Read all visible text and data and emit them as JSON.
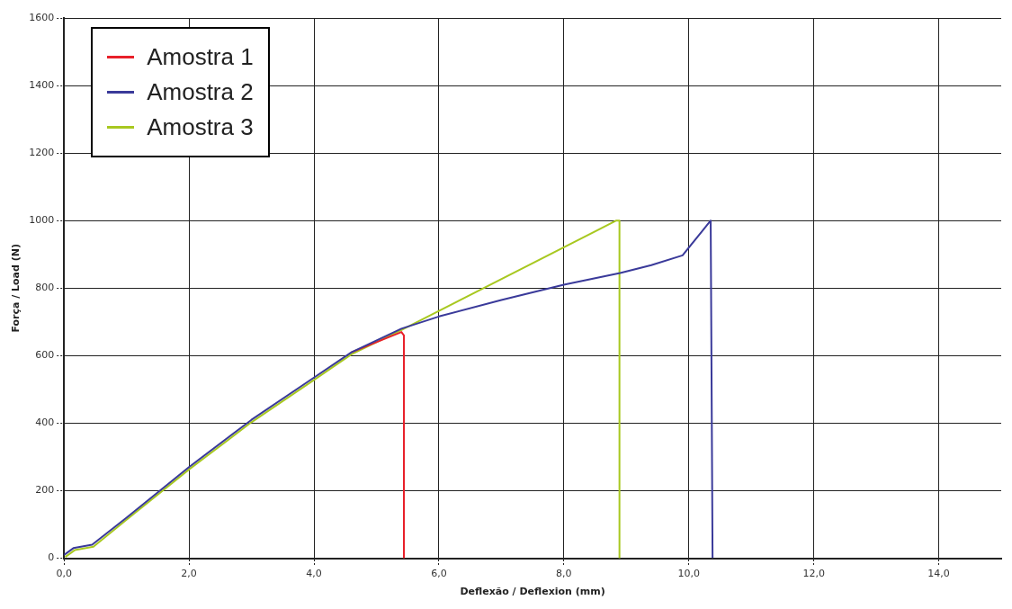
{
  "chart_data": {
    "type": "line",
    "xlabel": "Deflexão / Deflexion (mm)",
    "ylabel": "Força / Load (N)",
    "xlim": [
      0,
      15
    ],
    "xticks": [
      {
        "value": 0,
        "label": "0,0"
      },
      {
        "value": 2,
        "label": "2,0"
      },
      {
        "value": 4,
        "label": "4,0"
      },
      {
        "value": 6,
        "label": "6,0"
      },
      {
        "value": 8,
        "label": "8,0"
      },
      {
        "value": 10,
        "label": "10,0"
      },
      {
        "value": 12,
        "label": "12,0"
      },
      {
        "value": 14,
        "label": "14,0"
      }
    ],
    "ylim": [
      0,
      1600
    ],
    "yticks": [
      0,
      200,
      400,
      600,
      800,
      1000,
      1200,
      1400,
      1600
    ],
    "grid": true,
    "legend": "top left",
    "marker": "none",
    "line_style": "solid",
    "series": [
      {
        "name": "Amostra 1",
        "color": "#e8202a",
        "x": [
          4.6,
          5.4,
          5.44,
          5.44
        ],
        "values": [
          610,
          670,
          660,
          0
        ]
      },
      {
        "name": "Amostra 2",
        "color": "#3a3a9a",
        "x": [
          0,
          0.15,
          0.45,
          1,
          2,
          3,
          4,
          4.6,
          5.4,
          6,
          7,
          8,
          8.9,
          9.4,
          9.9,
          10.35,
          10.38
        ],
        "values": [
          10,
          30,
          40,
          120,
          270,
          410,
          535,
          610,
          680,
          716,
          765,
          810,
          845,
          868,
          897,
          1000,
          0
        ]
      },
      {
        "name": "Amostra 3",
        "color": "#a8c820",
        "x": [
          0.02,
          0.17,
          0.47,
          1,
          2,
          3,
          4,
          4.6,
          5.4,
          8.84,
          8.89,
          8.89
        ],
        "values": [
          4,
          24,
          34,
          114,
          263,
          403,
          528,
          604,
          676,
          1000,
          1000,
          0
        ]
      }
    ]
  }
}
